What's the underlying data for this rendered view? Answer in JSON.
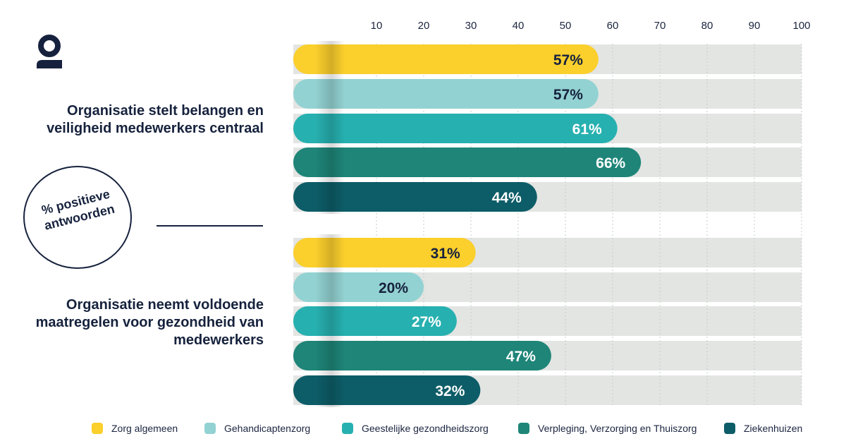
{
  "badge_text": "% positieve antwoorden",
  "legend": [
    {
      "label": "Zorg algemeen",
      "color": "#fbcf2c"
    },
    {
      "label": "Gehandicaptenzorg",
      "color": "#93d2d2"
    },
    {
      "label": "Geestelijke  gezondheidszorg",
      "color": "#27b0b0"
    },
    {
      "label": "Verpleging, Verzorging en Thuiszorg",
      "color": "#1e8578"
    },
    {
      "label": "Ziekenhuizen",
      "color": "#0d5d68"
    }
  ],
  "chart_data": {
    "type": "bar",
    "orientation": "horizontal",
    "xlim": [
      0,
      100
    ],
    "xticks": [
      10,
      20,
      30,
      40,
      50,
      60,
      70,
      80,
      90,
      100
    ],
    "series_names": [
      "Zorg algemeen",
      "Gehandicaptenzorg",
      "Geestelijke  gezondheidszorg",
      "Verpleging, Verzorging en Thuiszorg",
      "Ziekenhuizen"
    ],
    "series_colors": [
      "#fbcf2c",
      "#93d2d2",
      "#27b0b0",
      "#1e8578",
      "#0d5d68"
    ],
    "label_colors": [
      "#16223d",
      "#16223d",
      "#ffffff",
      "#ffffff",
      "#ffffff"
    ],
    "groups": [
      {
        "label": "Organisatie stelt belangen en veiligheid medewerkers centraal",
        "values": [
          57,
          57,
          61,
          66,
          44
        ],
        "labels": [
          "57%",
          "57%",
          "61%",
          "66%",
          "44%"
        ]
      },
      {
        "label": "Organisatie neemt voldoende maatregelen voor gezondheid van medewerkers",
        "values": [
          31,
          20,
          27,
          47,
          32
        ],
        "labels": [
          "31%",
          "20%",
          "27%",
          "47%",
          "32%"
        ]
      }
    ]
  }
}
